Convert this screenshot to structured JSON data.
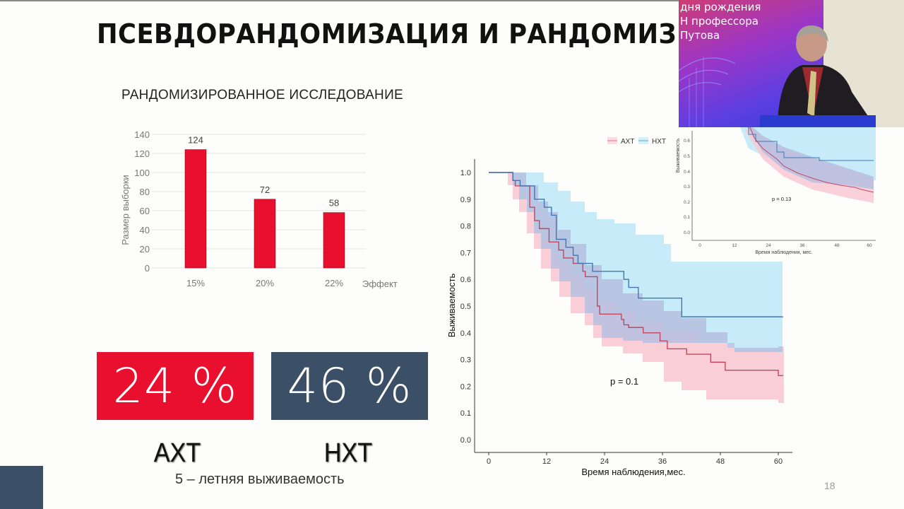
{
  "slide": {
    "title": "ПСЕВДОРАНДОМИЗАЦИЯ И РАНДОМИЗ",
    "page_number": "18"
  },
  "bar_section": {
    "subtitle": "РАНДОМИЗИРОВАННОЕ ИССЛЕДОВАНИЕ"
  },
  "stats": {
    "axt_value": "24 %",
    "nxt_value": "46 %",
    "axt_label": "АХТ",
    "nxt_label": "НХТ",
    "caption": "5 – летняя выживаемость",
    "colors": {
      "axt": "#e8102e",
      "nxt": "#3b4f66"
    }
  },
  "video_overlay": {
    "banner_lines": [
      "дня рождения",
      "Н профессора",
      "Путова"
    ]
  },
  "chart_data": [
    {
      "type": "bar",
      "title": "РАНДОМИЗИРОВАННОЕ ИССЛЕДОВАНИЕ",
      "categories": [
        "15%",
        "20%",
        "22%"
      ],
      "values": [
        124,
        72,
        58
      ],
      "data_labels": [
        "124",
        "72",
        "58"
      ],
      "xlabel": "Эффект",
      "ylabel": "Размер выборки",
      "yticks": [
        "0",
        "20",
        "40",
        "60",
        "80",
        "100",
        "120",
        "140"
      ],
      "ylim": [
        0,
        140
      ],
      "grid": true,
      "color": "#e8102e"
    },
    {
      "type": "line",
      "subtype": "kaplan-meier",
      "xlabel": "Время наблюдения,мес.",
      "ylabel": "Выживаемость",
      "xticks": [
        "0",
        "12",
        "24",
        "36",
        "48",
        "60"
      ],
      "yticks": [
        "0.0",
        "0.1",
        "0.2",
        "0.3",
        "0.4",
        "0.5",
        "0.6",
        "0.7",
        "0.8",
        "0.9",
        "1.0"
      ],
      "xlim": [
        0,
        61
      ],
      "ylim": [
        0,
        1.0
      ],
      "annotation": "p = 0.1",
      "legend": {
        "position": "top-right",
        "entries": [
          "АХТ",
          "НХТ"
        ]
      },
      "series": [
        {
          "name": "АХТ",
          "color": "#c0485f",
          "band_color": "#f9c9d3",
          "x": [
            0,
            5,
            5.5,
            8.5,
            9.5,
            10.5,
            12.5,
            14.5,
            15.5,
            17.5,
            19.5,
            20,
            22.5,
            23,
            27.5,
            28,
            29,
            32,
            35.5,
            37,
            41,
            46,
            49,
            60,
            61
          ],
          "y": [
            1.0,
            0.97,
            0.95,
            0.87,
            0.82,
            0.79,
            0.74,
            0.71,
            0.68,
            0.66,
            0.63,
            0.61,
            0.5,
            0.47,
            0.45,
            0.43,
            0.42,
            0.4,
            0.37,
            0.34,
            0.32,
            0.29,
            0.26,
            0.24,
            0.24
          ]
        },
        {
          "name": "НХТ",
          "color": "#3f78b5",
          "band_color": "#bde8f7",
          "x": [
            0,
            5,
            6.5,
            9.5,
            11.5,
            13,
            14,
            16,
            17.5,
            18.5,
            20,
            21.5,
            28,
            29,
            31,
            40,
            61
          ],
          "y": [
            1.0,
            0.97,
            0.95,
            0.9,
            0.87,
            0.84,
            0.75,
            0.72,
            0.69,
            0.66,
            0.66,
            0.63,
            0.6,
            0.57,
            0.53,
            0.46,
            0.46
          ]
        }
      ]
    },
    {
      "type": "line",
      "subtype": "kaplan-meier-inset",
      "xlabel": "Время наблюдения, мес.",
      "ylabel": "Выживаемость",
      "xticks": [
        "0",
        "12",
        "24",
        "36",
        "48",
        "60"
      ],
      "yticks": [
        "0.0",
        "0.1",
        "0.2",
        "0.3",
        "0.4",
        "0.5",
        "0.6"
      ],
      "annotation": "p = 0.13",
      "series": [
        {
          "name": "АХТ",
          "color": "#c0485f",
          "end_value": 0.26
        },
        {
          "name": "НХТ",
          "color": "#3f78b5",
          "end_value": 0.46
        }
      ]
    }
  ]
}
